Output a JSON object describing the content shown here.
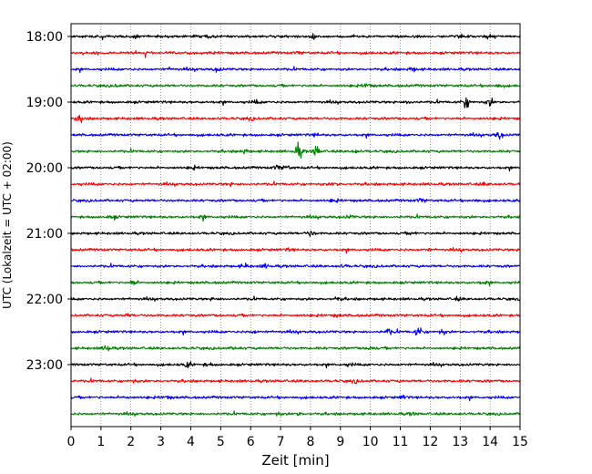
{
  "chart_data": {
    "type": "line",
    "chart_kind": "helicorder",
    "xlabel": "Zeit  [min]",
    "ylabel": "UTC (Lokalzeit = UTC + 02:00)",
    "xlim": [
      0,
      15
    ],
    "x_ticks": [
      0,
      1,
      2,
      3,
      4,
      5,
      6,
      7,
      8,
      9,
      10,
      11,
      12,
      13,
      14,
      15
    ],
    "y_tick_labels": [
      "18:00",
      "19:00",
      "20:00",
      "21:00",
      "22:00",
      "23:00"
    ],
    "grid": "vertical dotted",
    "line_minutes": 15,
    "start_time": "18:00",
    "color_cycle": [
      "#000000",
      "#ff0000",
      "#0000ff",
      "#008000"
    ],
    "traces": [
      {
        "start": "18:00",
        "color": "#000000",
        "events": [
          [
            4.6,
            0.5
          ],
          [
            8.1,
            0.5
          ],
          [
            2.1,
            0.4
          ]
        ]
      },
      {
        "start": "18:15",
        "color": "#ff0000",
        "events": [
          [
            3.6,
            0.4
          ],
          [
            7.6,
            0.3
          ]
        ]
      },
      {
        "start": "18:30",
        "color": "#0000ff",
        "events": [
          [
            4.9,
            0.5
          ],
          [
            11.4,
            0.5
          ],
          [
            3.3,
            0.3
          ]
        ]
      },
      {
        "start": "18:45",
        "color": "#008000",
        "events": [
          [
            9.9,
            0.6
          ],
          [
            14.3,
            0.5
          ],
          [
            1.6,
            0.3
          ]
        ]
      },
      {
        "start": "19:00",
        "color": "#000000",
        "events": [
          [
            13.2,
            1.5
          ],
          [
            14.0,
            1.0
          ],
          [
            11.3,
            0.5
          ],
          [
            6.2,
            0.4
          ]
        ]
      },
      {
        "start": "19:15",
        "color": "#ff0000",
        "events": [
          [
            0.3,
            1.0
          ],
          [
            6.0,
            0.3
          ]
        ]
      },
      {
        "start": "19:30",
        "color": "#0000ff",
        "events": [
          [
            14.3,
            0.9
          ],
          [
            8.2,
            0.3
          ]
        ]
      },
      {
        "start": "19:45",
        "color": "#008000",
        "events": [
          [
            7.6,
            1.8
          ],
          [
            8.2,
            1.4
          ],
          [
            5.8,
            0.5
          ],
          [
            9.5,
            0.4
          ]
        ]
      },
      {
        "start": "20:00",
        "color": "#000000",
        "events": [
          [
            6.9,
            0.6
          ],
          [
            7.2,
            0.5
          ],
          [
            4.1,
            0.3
          ]
        ]
      },
      {
        "start": "20:15",
        "color": "#ff0000",
        "events": [
          [
            8.8,
            0.5
          ],
          [
            5.3,
            0.3
          ],
          [
            13.8,
            0.3
          ]
        ]
      },
      {
        "start": "20:30",
        "color": "#0000ff",
        "events": [
          [
            11.7,
            0.5
          ],
          [
            13.5,
            0.4
          ],
          [
            8.8,
            0.3
          ]
        ]
      },
      {
        "start": "20:45",
        "color": "#008000",
        "events": [
          [
            1.4,
            0.4
          ],
          [
            9.3,
            0.4
          ],
          [
            4.4,
            0.3
          ]
        ]
      },
      {
        "start": "21:00",
        "color": "#000000",
        "events": [
          [
            8.0,
            0.7
          ],
          [
            11.4,
            0.3
          ]
        ]
      },
      {
        "start": "21:15",
        "color": "#ff0000",
        "events": [
          [
            7.3,
            0.3
          ],
          [
            11.9,
            0.3
          ]
        ]
      },
      {
        "start": "21:30",
        "color": "#0000ff",
        "events": [
          [
            5.8,
            0.6
          ],
          [
            6.5,
            0.5
          ],
          [
            9.1,
            0.3
          ]
        ]
      },
      {
        "start": "21:45",
        "color": "#008000",
        "events": [
          [
            2.1,
            0.8
          ],
          [
            13.8,
            0.3
          ]
        ]
      },
      {
        "start": "22:00",
        "color": "#000000",
        "events": [
          [
            8.9,
            0.4
          ],
          [
            12.9,
            0.4
          ],
          [
            4.8,
            0.3
          ]
        ]
      },
      {
        "start": "22:15",
        "color": "#ff0000",
        "events": [
          [
            1.9,
            0.3
          ],
          [
            8.9,
            0.3
          ]
        ]
      },
      {
        "start": "22:30",
        "color": "#0000ff",
        "events": [
          [
            11.6,
            1.3
          ],
          [
            10.6,
            0.8
          ],
          [
            12.4,
            0.7
          ],
          [
            6.1,
            0.4
          ]
        ]
      },
      {
        "start": "22:45",
        "color": "#008000",
        "events": [
          [
            1.2,
            1.0
          ],
          [
            10.0,
            0.6
          ],
          [
            5.5,
            0.3
          ]
        ]
      },
      {
        "start": "23:00",
        "color": "#000000",
        "events": [
          [
            3.9,
            0.7
          ],
          [
            4.6,
            0.4
          ],
          [
            9.3,
            0.3
          ]
        ]
      },
      {
        "start": "23:15",
        "color": "#ff0000",
        "events": [
          [
            2.1,
            0.4
          ],
          [
            9.5,
            0.3
          ]
        ]
      },
      {
        "start": "23:30",
        "color": "#0000ff",
        "events": [
          [
            3.2,
            0.4
          ],
          [
            11.1,
            0.4
          ],
          [
            1.8,
            0.3
          ]
        ]
      },
      {
        "start": "23:45",
        "color": "#008000",
        "events": [
          [
            6.9,
            0.5
          ],
          [
            7.6,
            0.4
          ],
          [
            11.4,
            0.3
          ]
        ]
      }
    ]
  }
}
